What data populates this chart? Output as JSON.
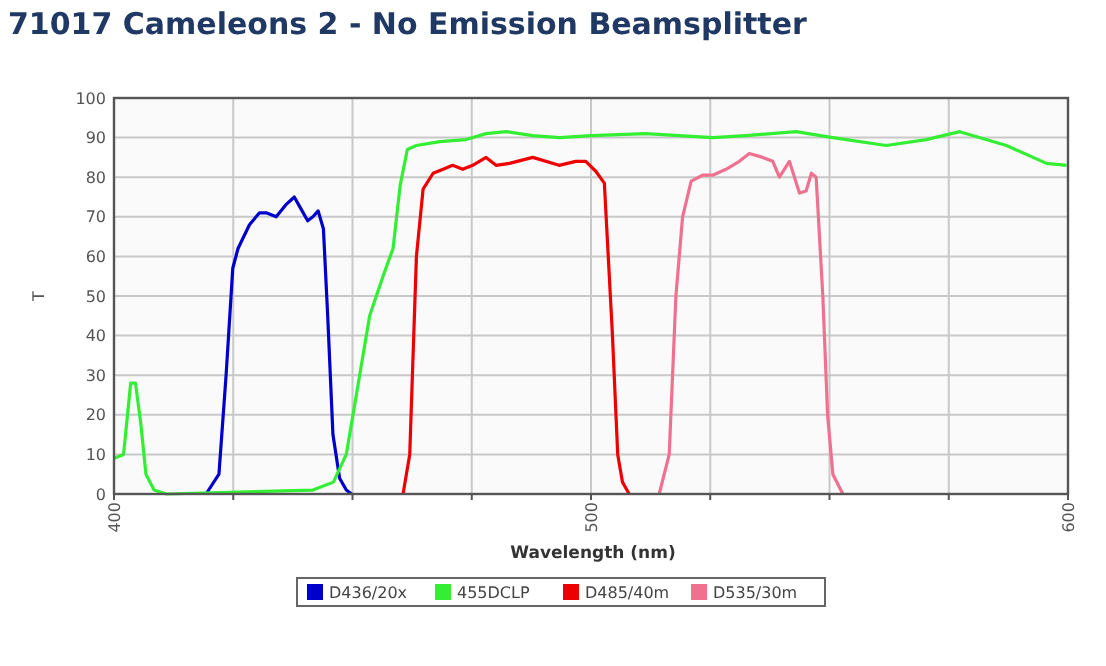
{
  "chart_data": {
    "type": "line",
    "title": "71017 Cameleons 2 - No Emission Beamsplitter",
    "xlabel": "Wavelength (nm)",
    "ylabel": "T",
    "xlim": [
      400,
      600
    ],
    "ylim": [
      0,
      100
    ],
    "xticks": [
      400,
      {
        "value": 425,
        "label": null
      },
      {
        "value": 450,
        "label": null
      },
      {
        "value": 475,
        "label": null
      },
      500,
      {
        "value": 525,
        "label": null
      },
      {
        "value": 550,
        "label": null
      },
      {
        "value": 575,
        "label": null
      },
      600
    ],
    "yticks": [
      0,
      10,
      20,
      30,
      40,
      50,
      60,
      70,
      80,
      90,
      100
    ],
    "grid": true,
    "legend": "bottom",
    "series": [
      {
        "name": "D436/20x",
        "color": "#0000cc",
        "x": [
          419.3,
          422,
          423.5,
          424.9,
          426,
          428.4,
          430.5,
          431.9,
          434,
          436,
          437.8,
          439.2,
          440.6,
          441.7,
          442.8,
          443.9,
          444.8,
          445.9,
          447.3,
          448.7,
          449.8
        ],
        "values": [
          0,
          5,
          30,
          57,
          62,
          68,
          71,
          71,
          70,
          73,
          75,
          72,
          69,
          70,
          71.5,
          67,
          45,
          15,
          4,
          1,
          0
        ]
      },
      {
        "name": "455DCLP",
        "color": "#33ee33",
        "x": [
          400,
          402,
          403.5,
          404.5,
          405.6,
          406.7,
          408.4,
          411,
          441.7,
          446,
          448.7,
          451.5,
          453.6,
          456.4,
          458.5,
          460,
          461.5,
          463.4,
          468.3,
          473.8,
          478,
          482.2,
          487.8,
          493.4,
          500,
          511.5,
          525.5,
          532.5,
          543,
          550.7,
          561.9,
          570.3,
          577.3,
          587.1,
          595.5,
          599.7
        ],
        "values": [
          9,
          10,
          28,
          28,
          18,
          5,
          1,
          0,
          1,
          3,
          10,
          30,
          45,
          55,
          62,
          78,
          87,
          88,
          89,
          89.5,
          91,
          91.5,
          90.5,
          90,
          90.5,
          91,
          90,
          90.5,
          91.5,
          90,
          88,
          89.5,
          91.5,
          88,
          83.5,
          83
        ]
      },
      {
        "name": "D485/40m",
        "color": "#ee0000",
        "x": [
          460.6,
          462,
          463.4,
          464.8,
          466.9,
          469,
          471,
          473.1,
          475.2,
          478,
          480.1,
          482.9,
          487.8,
          493.3,
          496.8,
          498.9,
          501,
          502.8,
          504.5,
          505.6,
          506.6,
          508
        ],
        "values": [
          0,
          10,
          60,
          77,
          81,
          82,
          83,
          82,
          83,
          85,
          83,
          83.5,
          85,
          83,
          84,
          84,
          81.5,
          78.5,
          40,
          10,
          3,
          0
        ]
      },
      {
        "name": "D535/30m",
        "color": "#f07090",
        "x": [
          514.3,
          516.4,
          517.8,
          519.2,
          521,
          523.4,
          525.5,
          528.3,
          531.1,
          533.2,
          536,
          538.1,
          539.5,
          541.6,
          543.7,
          545.1,
          546.2,
          547.2,
          548.6,
          549.6,
          550.7,
          552.8
        ],
        "values": [
          0,
          10,
          50,
          70,
          79,
          80.5,
          80.5,
          82,
          84,
          86,
          85,
          84,
          80,
          84,
          76,
          76.5,
          81,
          80,
          50,
          20,
          5,
          0
        ]
      }
    ]
  }
}
